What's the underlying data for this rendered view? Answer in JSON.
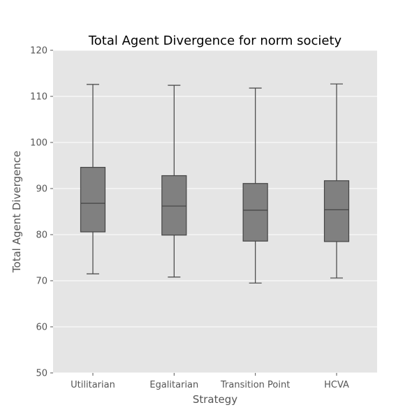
{
  "chart_data": {
    "type": "box",
    "title": "Total Agent Divergence for norm society",
    "xlabel": "Strategy",
    "ylabel": "Total Agent Divergence",
    "ylim": [
      50,
      120
    ],
    "yticks": [
      50,
      60,
      70,
      80,
      90,
      100,
      110,
      120
    ],
    "grid": true,
    "categories": [
      "Utilitarian",
      "Egalitarian",
      "Transition Point",
      "HCVA"
    ],
    "boxes": [
      {
        "min": 71.5,
        "q1": 80.6,
        "median": 86.8,
        "q3": 94.6,
        "max": 112.6
      },
      {
        "min": 70.8,
        "q1": 79.9,
        "median": 86.2,
        "q3": 92.8,
        "max": 112.4
      },
      {
        "min": 69.5,
        "q1": 78.6,
        "median": 85.3,
        "q3": 91.1,
        "max": 111.8
      },
      {
        "min": 70.6,
        "q1": 78.5,
        "median": 85.4,
        "q3": 91.7,
        "max": 112.7
      }
    ],
    "colors": {
      "plot_background": "#e5e5e5",
      "grid": "#ffffff",
      "box_fill": "#808080",
      "box_edge": "#444444"
    }
  }
}
